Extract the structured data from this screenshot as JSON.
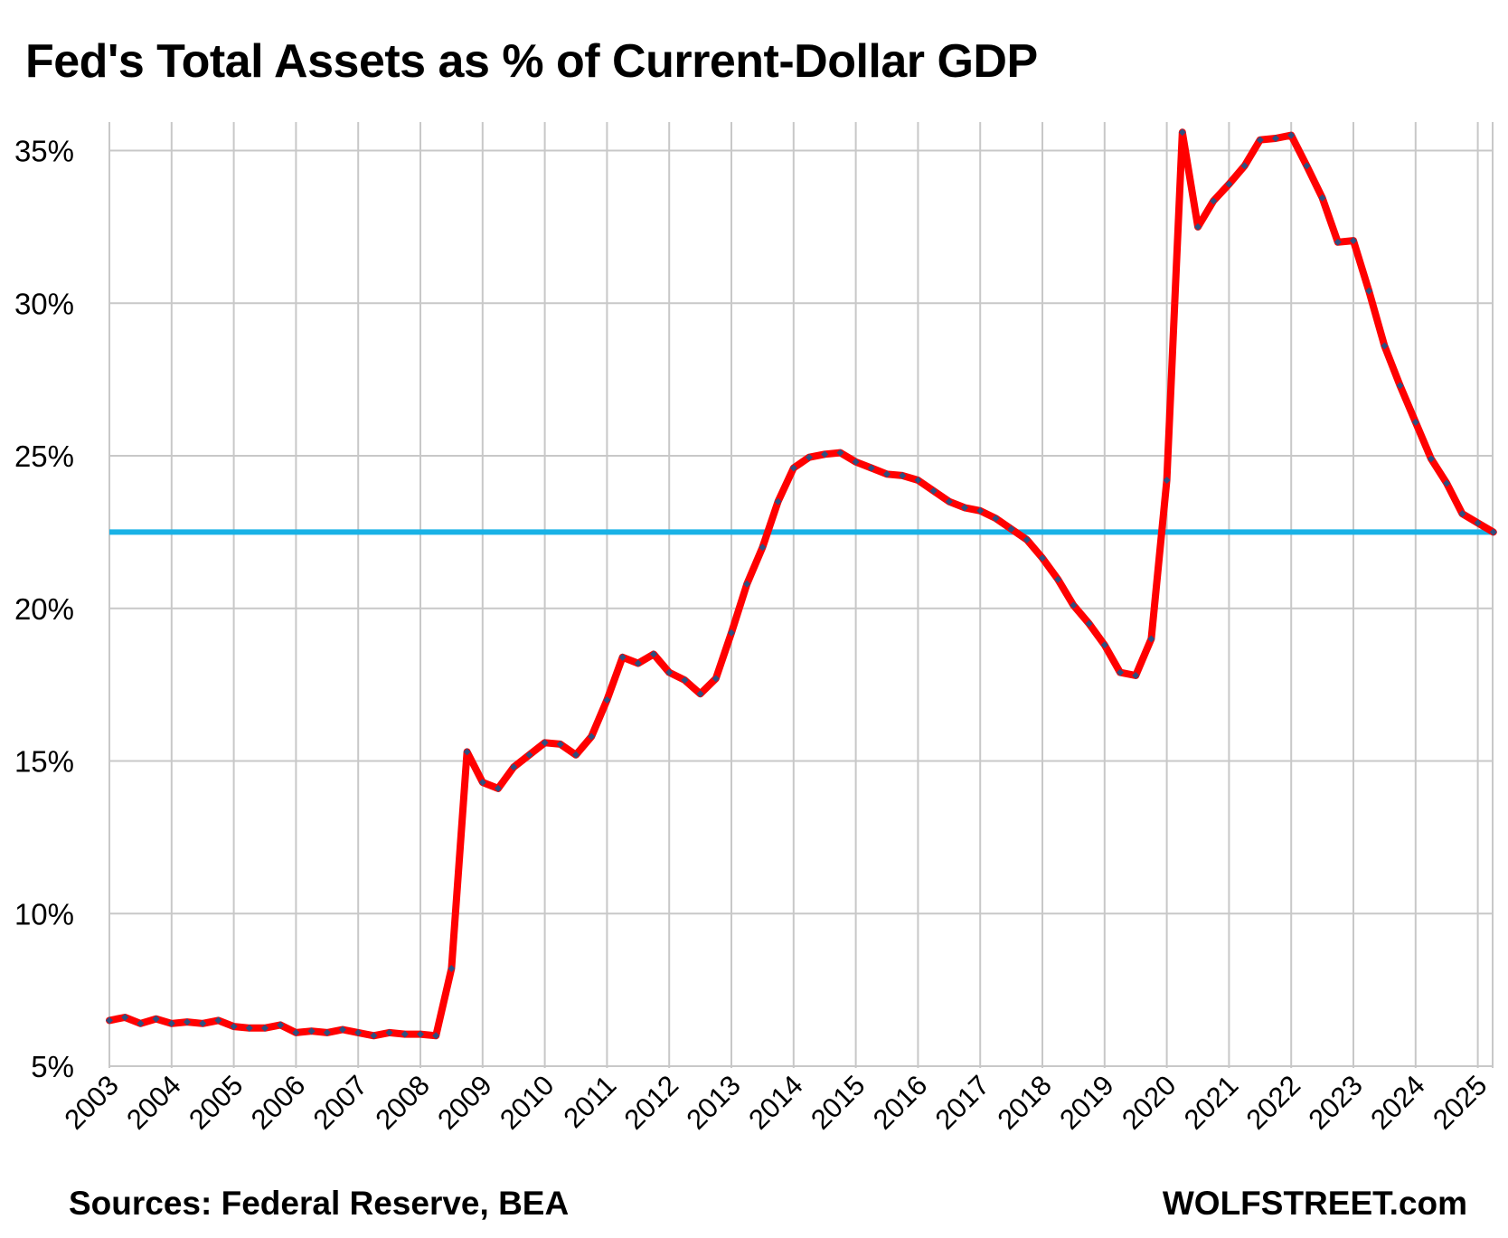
{
  "title": "Fed's Total Assets as % of Current-Dollar GDP",
  "footer": {
    "source": "Sources: Federal Reserve, BEA",
    "brand": "WOLFSTREET.com"
  },
  "colors": {
    "series_line": "#ff0000",
    "series_marker": "#2f4f7f",
    "reference_line": "#19b2e6",
    "grid": "#c8c8c8"
  },
  "chart_data": {
    "type": "line",
    "title": "Fed's Total Assets as % of Current-Dollar GDP",
    "xlabel": "",
    "ylabel": "",
    "xlim": [
      2003.0,
      2025.25
    ],
    "ylim": [
      5,
      36
    ],
    "y_ticks": [
      {
        "value": 5,
        "label": "5%"
      },
      {
        "value": 10,
        "label": "10%"
      },
      {
        "value": 15,
        "label": "15%"
      },
      {
        "value": 20,
        "label": "20%"
      },
      {
        "value": 25,
        "label": "25%"
      },
      {
        "value": 30,
        "label": "30%"
      },
      {
        "value": 35,
        "label": "35%"
      }
    ],
    "x_ticks": [
      "2003",
      "2004",
      "2005",
      "2006",
      "2007",
      "2008",
      "2009",
      "2010",
      "2011",
      "2012",
      "2013",
      "2014",
      "2015",
      "2016",
      "2017",
      "2018",
      "2019",
      "2020",
      "2021",
      "2022",
      "2023",
      "2024",
      "2025"
    ],
    "grid": true,
    "legend": "none",
    "reference_line": {
      "y": 22.5
    },
    "series": [
      {
        "x": [
          2003.0,
          2003.25,
          2003.5,
          2003.75,
          2004.0,
          2004.25,
          2004.5,
          2004.75,
          2005.0,
          2005.25,
          2005.5,
          2005.75,
          2006.0,
          2006.25,
          2006.5,
          2006.75,
          2007.0,
          2007.25,
          2007.5,
          2007.75,
          2008.0,
          2008.25,
          2008.5,
          2008.75,
          2009.0,
          2009.25,
          2009.5,
          2009.75,
          2010.0,
          2010.25,
          2010.5,
          2010.75,
          2011.0,
          2011.25,
          2011.5,
          2011.75,
          2012.0,
          2012.25,
          2012.5,
          2012.75,
          2013.0,
          2013.25,
          2013.5,
          2013.75,
          2014.0,
          2014.25,
          2014.5,
          2014.75,
          2015.0,
          2015.25,
          2015.5,
          2015.75,
          2016.0,
          2016.25,
          2016.5,
          2016.75,
          2017.0,
          2017.25,
          2017.5,
          2017.75,
          2018.0,
          2018.25,
          2018.5,
          2018.75,
          2019.0,
          2019.25,
          2019.5,
          2019.75,
          2020.0,
          2020.25,
          2020.5,
          2020.75,
          2021.0,
          2021.25,
          2021.5,
          2021.75,
          2022.0,
          2022.25,
          2022.5,
          2022.75,
          2023.0,
          2023.25,
          2023.5,
          2023.75,
          2024.0,
          2024.25,
          2024.5,
          2024.75,
          2025.0,
          2025.25
        ],
        "y": [
          6.5,
          6.6,
          6.4,
          6.55,
          6.4,
          6.45,
          6.4,
          6.5,
          6.3,
          6.25,
          6.25,
          6.35,
          6.1,
          6.15,
          6.1,
          6.2,
          6.1,
          6.0,
          6.1,
          6.05,
          6.05,
          6.0,
          8.2,
          15.3,
          14.3,
          14.1,
          14.8,
          15.2,
          15.6,
          15.55,
          15.2,
          15.8,
          17.0,
          18.4,
          18.2,
          18.5,
          17.9,
          17.65,
          17.2,
          17.7,
          19.2,
          20.8,
          22.0,
          23.5,
          24.6,
          24.95,
          25.05,
          25.1,
          24.8,
          24.6,
          24.4,
          24.35,
          24.2,
          23.85,
          23.5,
          23.3,
          23.2,
          22.95,
          22.6,
          22.25,
          21.65,
          20.95,
          20.1,
          19.5,
          18.8,
          17.9,
          17.8,
          19.0,
          24.2,
          35.6,
          32.5,
          33.35,
          33.9,
          34.5,
          35.35,
          35.4,
          35.5,
          34.5,
          33.45,
          32.0,
          32.05,
          30.4,
          28.6,
          27.3,
          26.1,
          24.9,
          24.1,
          23.1,
          22.8,
          22.5
        ]
      }
    ]
  }
}
